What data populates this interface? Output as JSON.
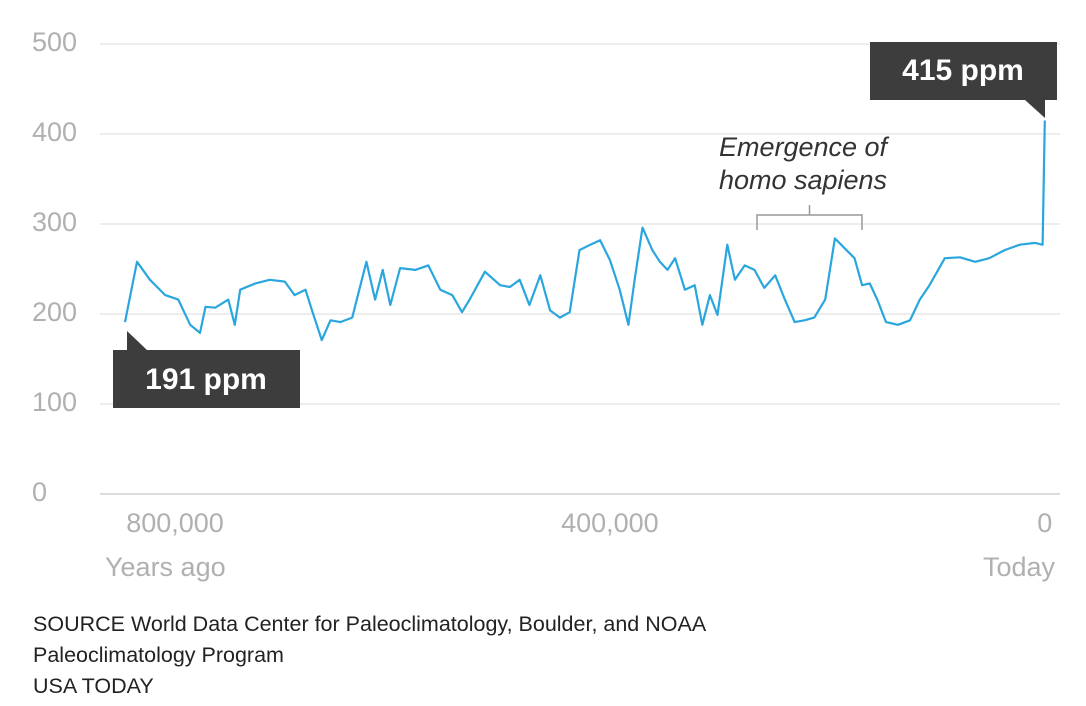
{
  "chart_data": {
    "type": "line",
    "color": "#2aa6de",
    "grid": true,
    "x": [
      846000,
      835000,
      823000,
      809000,
      797000,
      786000,
      777000,
      772000,
      763000,
      751000,
      745000,
      740000,
      726000,
      713000,
      699000,
      690000,
      680000,
      674000,
      665000,
      657000,
      648000,
      637000,
      624000,
      616000,
      609000,
      602000,
      593000,
      579000,
      567000,
      556000,
      545000,
      536000,
      529000,
      515000,
      501000,
      492000,
      483000,
      474000,
      464000,
      455000,
      446000,
      437000,
      428000,
      418000,
      409000,
      400000,
      391000,
      383000,
      377000,
      370000,
      361000,
      354000,
      347000,
      340000,
      331000,
      322000,
      315000,
      308000,
      301000,
      292000,
      285000,
      276000,
      267000,
      258000,
      248000,
      239000,
      230000,
      221000,
      212000,
      202000,
      193000,
      184000,
      175000,
      168000,
      161000,
      154000,
      146000,
      135000,
      124000,
      115000,
      106000,
      92000,
      78000,
      64000,
      51000,
      37000,
      23000,
      9000,
      2000,
      0
    ],
    "values": [
      191,
      258,
      238,
      221,
      216,
      188,
      179,
      208,
      207,
      216,
      188,
      227,
      234,
      238,
      236,
      221,
      227,
      204,
      171,
      193,
      191,
      196,
      258,
      216,
      249,
      210,
      251,
      249,
      254,
      227,
      221,
      202,
      216,
      247,
      232,
      230,
      238,
      210,
      243,
      204,
      196,
      202,
      271,
      277,
      282,
      260,
      227,
      188,
      240,
      296,
      271,
      258,
      249,
      262,
      227,
      232,
      188,
      221,
      199,
      277,
      238,
      254,
      249,
      229,
      243,
      216,
      191,
      193,
      196,
      216,
      284,
      273,
      262,
      232,
      234,
      216,
      191,
      188,
      193,
      216,
      232,
      262,
      263,
      258,
      262,
      271,
      277,
      279,
      277,
      415
    ],
    "xlim": [
      869000,
      -14000
    ],
    "ylim": [
      0,
      500
    ],
    "xticks": [
      {
        "value": 800000,
        "label": "800,000"
      },
      {
        "value": 400000,
        "label": "400,000"
      },
      0
    ],
    "yticks": [
      0,
      100,
      200,
      300,
      400,
      500
    ],
    "x_label_left": "Years ago",
    "x_label_right": "Today",
    "callouts": [
      "191 ppm",
      "415 ppm"
    ],
    "annotation": [
      "Emergence of",
      "homo sapiens"
    ],
    "source": "SOURCE World Data Center for Paleoclimatology, Boulder, and NOAA Paleoclimatology Program",
    "credit": "USA TODAY"
  }
}
